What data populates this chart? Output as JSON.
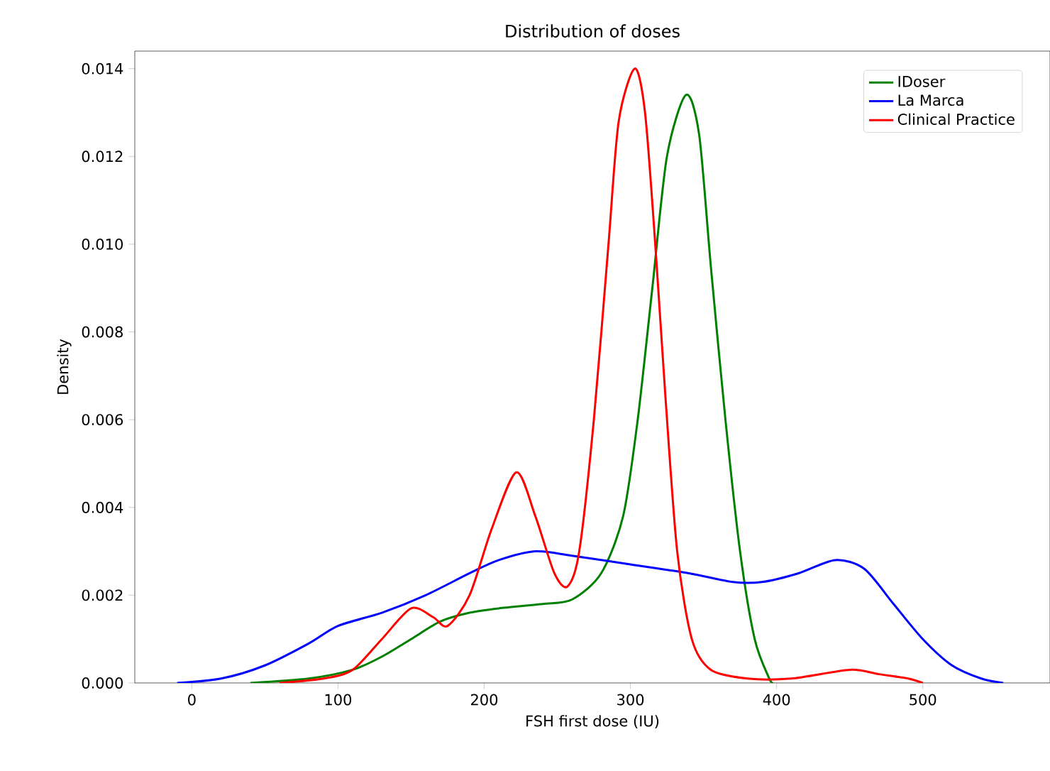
{
  "chart_data": {
    "type": "line",
    "title": "Distribution of doses",
    "xlabel": "FSH first dose (IU)",
    "ylabel": "Density",
    "xlim": [
      -39,
      587
    ],
    "ylim": [
      0,
      0.0144
    ],
    "xticks": [
      0,
      100,
      200,
      300,
      400,
      500
    ],
    "yticks": [
      {
        "value": 0,
        "label": "0.000"
      },
      {
        "value": 0.002,
        "label": "0.002"
      },
      {
        "value": 0.004,
        "label": "0.004"
      },
      {
        "value": 0.006,
        "label": "0.006"
      },
      {
        "value": 0.008,
        "label": "0.008"
      },
      {
        "value": 0.01,
        "label": "0.010"
      },
      {
        "value": 0.012,
        "label": "0.012"
      },
      {
        "value": 0.014,
        "label": "0.014"
      }
    ],
    "grid": false,
    "legend": "top right",
    "marker": "none",
    "line_style": "solid",
    "series": [
      {
        "name": "IDoser",
        "color": "#008000",
        "x": [
          40,
          80,
          110,
          130,
          150,
          170,
          190,
          210,
          240,
          260,
          280,
          295,
          305,
          315,
          325,
          338,
          347,
          355,
          365,
          375,
          385,
          395,
          398
        ],
        "values": [
          0,
          0.0001,
          0.0003,
          0.0006,
          0.001,
          0.0014,
          0.0016,
          0.0017,
          0.0018,
          0.0019,
          0.0025,
          0.0038,
          0.006,
          0.009,
          0.012,
          0.0134,
          0.0125,
          0.0095,
          0.006,
          0.003,
          0.001,
          0.0001,
          0
        ]
      },
      {
        "name": "La Marca",
        "color": "#0000ff",
        "x": [
          -10,
          20,
          50,
          80,
          100,
          130,
          160,
          190,
          210,
          235,
          260,
          300,
          340,
          370,
          390,
          415,
          440,
          460,
          480,
          500,
          520,
          540,
          555
        ],
        "values": [
          0,
          0.0001,
          0.0004,
          0.0009,
          0.0013,
          0.0016,
          0.002,
          0.0025,
          0.0028,
          0.003,
          0.0029,
          0.0027,
          0.0025,
          0.0023,
          0.0023,
          0.0025,
          0.0028,
          0.0026,
          0.0018,
          0.001,
          0.0004,
          0.0001,
          0
        ]
      },
      {
        "name": "Clinical Practice",
        "color": "#ff0000",
        "x": [
          60,
          90,
          110,
          130,
          150,
          165,
          175,
          190,
          205,
          222,
          235,
          248,
          257,
          265,
          275,
          285,
          292,
          303,
          310,
          317,
          324,
          332,
          342,
          355,
          380,
          410,
          450,
          470,
          490,
          500
        ],
        "values": [
          0,
          0.0001,
          0.0003,
          0.001,
          0.0017,
          0.0015,
          0.0013,
          0.002,
          0.0035,
          0.0048,
          0.0038,
          0.0025,
          0.0022,
          0.003,
          0.006,
          0.01,
          0.0128,
          0.014,
          0.013,
          0.01,
          0.0065,
          0.003,
          0.001,
          0.0003,
          0.0001,
          0.0001,
          0.0003,
          0.0002,
          0.0001,
          0
        ]
      }
    ]
  }
}
